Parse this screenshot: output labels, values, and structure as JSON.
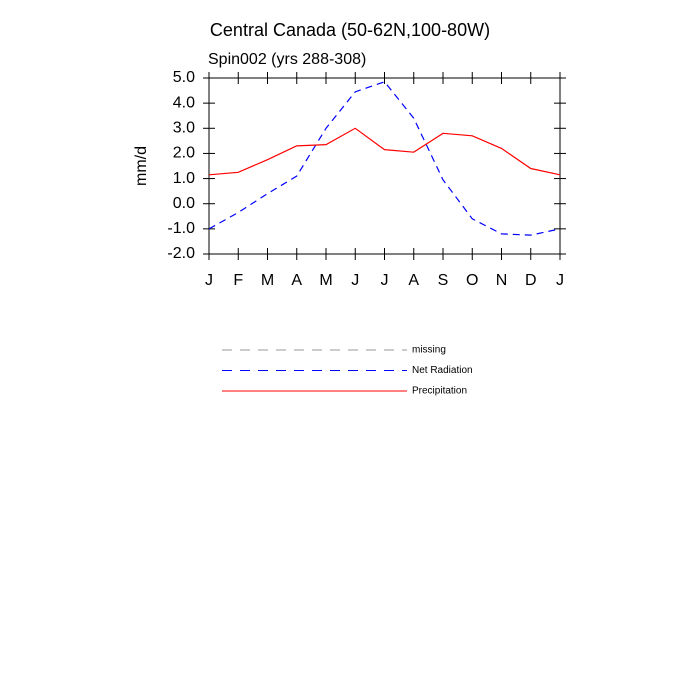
{
  "chart_data": {
    "type": "line",
    "title": "Central Canada (50-62N,100-80W)",
    "subtitle": "Spin002 (yrs 288-308)",
    "y_label": "mm/d",
    "categories": [
      "J",
      "F",
      "M",
      "A",
      "M",
      "J",
      "J",
      "A",
      "S",
      "O",
      "N",
      "D",
      "J"
    ],
    "series": [
      {
        "name": "missing",
        "color": "#999999",
        "dashed": true,
        "values": [
          null,
          null,
          null,
          null,
          null,
          null,
          null,
          null,
          null,
          null,
          null,
          null,
          null
        ]
      },
      {
        "name": "Net Radiation",
        "color": "#0000ff",
        "dashed": true,
        "values": [
          -1.0,
          -0.35,
          0.4,
          1.1,
          3.0,
          4.45,
          4.85,
          3.4,
          0.95,
          -0.6,
          -1.2,
          -1.25,
          -1.0
        ]
      },
      {
        "name": "Precipitation",
        "color": "#ff0000",
        "dashed": false,
        "values": [
          1.15,
          1.25,
          1.75,
          2.3,
          2.35,
          3.0,
          2.15,
          2.05,
          2.8,
          2.7,
          2.2,
          1.4,
          1.15
        ]
      }
    ],
    "ylim": [
      -2.0,
      5.0
    ],
    "yticks": [
      {
        "value": 5.0,
        "label": "5.0"
      },
      {
        "value": 4.0,
        "label": "4.0"
      },
      {
        "value": 3.0,
        "label": "3.0"
      },
      {
        "value": 2.0,
        "label": "2.0"
      },
      {
        "value": 1.0,
        "label": "1.0"
      },
      {
        "value": 0.0,
        "label": "0.0"
      },
      {
        "value": -1.0,
        "label": "-1.0"
      },
      {
        "value": -2.0,
        "label": "-2.0"
      }
    ]
  }
}
